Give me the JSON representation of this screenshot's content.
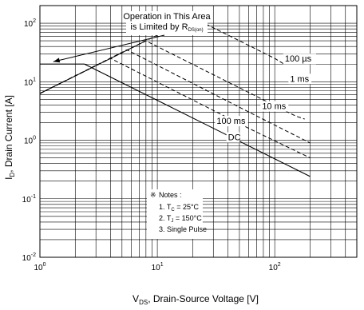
{
  "chart_data": {
    "type": "line",
    "xscale": "log",
    "yscale": "log",
    "xlim": [
      1,
      500
    ],
    "ylim": [
      0.01,
      200
    ],
    "grid": true,
    "xlabel_parts": {
      "main": "V",
      "sub": "DS",
      "rest": ", Drain-Source Voltage [V]"
    },
    "ylabel_parts": {
      "main": "I",
      "sub": "D",
      "rest": ", Drain Current [A]"
    },
    "x_ticks": [
      {
        "value": 1,
        "base": "10",
        "exp": "0"
      },
      {
        "value": 10,
        "base": "10",
        "exp": "1"
      },
      {
        "value": 100,
        "base": "10",
        "exp": "2"
      }
    ],
    "y_ticks": [
      {
        "value": 0.01,
        "base": "10",
        "exp": "-2"
      },
      {
        "value": 0.1,
        "base": "10",
        "exp": "-1"
      },
      {
        "value": 1,
        "base": "10",
        "exp": "0"
      },
      {
        "value": 10,
        "base": "10",
        "exp": "1"
      },
      {
        "value": 100,
        "base": "10",
        "exp": "2"
      }
    ],
    "annotation": {
      "line1": "Operation in This Area",
      "line2_main": "is Limited by R",
      "line2_sub": "DS(on)",
      "arrow_to": [
        1.3,
        22
      ]
    },
    "rds_limit_line": {
      "x": [
        1.0,
        8.0
      ],
      "y": [
        6.3,
        50
      ]
    },
    "series": [
      {
        "name": "100 µs",
        "style": "dashed",
        "x": [
          1.0,
          20,
          100,
          120
        ],
        "y": [
          6.3,
          125,
          25,
          20
        ]
      },
      {
        "name": "1 ms",
        "style": "dashed",
        "x": [
          1.0,
          8.0,
          150,
          180
        ],
        "y": [
          6.3,
          50,
          2.6,
          2.3
        ]
      },
      {
        "name": "10 ms",
        "style": "dashed",
        "x": [
          1.0,
          5.5,
          70,
          200
        ],
        "y": [
          6.3,
          35,
          2.6,
          0.9
        ]
      },
      {
        "name": "100 ms",
        "style": "dashed",
        "x": [
          1.0,
          4.0,
          60,
          200
        ],
        "y": [
          6.3,
          25,
          1.6,
          0.5
        ]
      },
      {
        "name": "DC",
        "style": "solid",
        "x": [
          1.0,
          2.4,
          200
        ],
        "y": [
          20,
          20,
          0.24
        ]
      }
    ],
    "curve_labels": [
      {
        "text": "100 µs",
        "x": 122,
        "y": 22
      },
      {
        "text": "1 ms",
        "x": 135,
        "y": 10
      },
      {
        "text": "10 ms",
        "x": 78,
        "y": 3.4
      },
      {
        "text": "100 ms",
        "x": 32,
        "y": 1.9
      },
      {
        "text": "DC",
        "x": 40,
        "y": 1.0
      }
    ],
    "notes": {
      "title": "Notes :",
      "line1": {
        "pre": "1. T",
        "sub": "C",
        "post": " = 25°C"
      },
      "line2": {
        "pre": "2. T",
        "sub": "J",
        "post": " = 150°C"
      },
      "line3": "3. Single Pulse"
    }
  }
}
